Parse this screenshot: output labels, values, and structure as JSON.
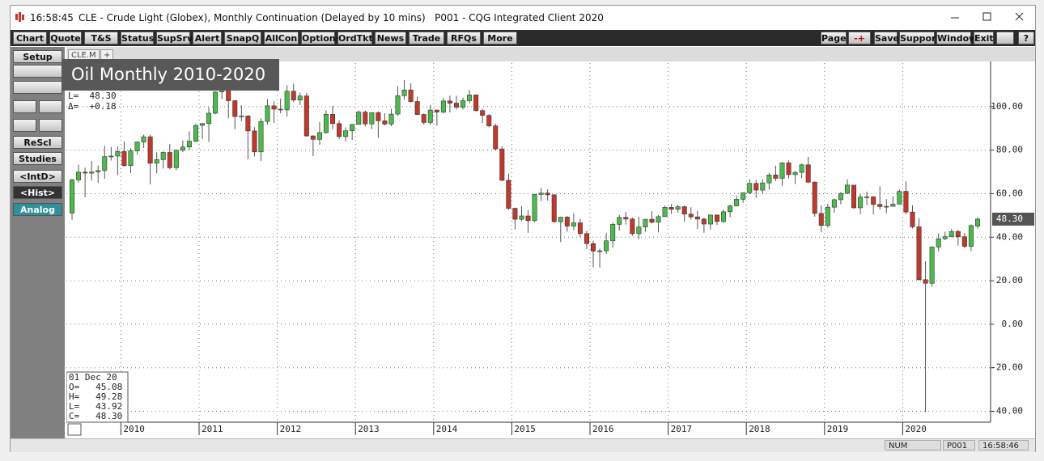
{
  "window": {
    "time": "16:58:45",
    "title": "CLE - Crude Light (Globex), Monthly Continuation (Delayed by 10 mins)   P001 - CQG Integrated Client 2020"
  },
  "toolbar": {
    "left": [
      "Chart",
      "Quote",
      "T&S",
      "Status",
      "SupSrv",
      "Alert",
      "SnapQ",
      "AllCon",
      "Options",
      "OrdTkt",
      "News",
      "Trade",
      "RFQs",
      "More"
    ],
    "right": [
      "Page",
      "-+",
      "Save",
      "Support",
      "Window",
      "Exit",
      "?"
    ]
  },
  "sidebar": [
    "Setup",
    "ReScl",
    "Studies",
    "<IntD>",
    "<Hist>",
    "Analog"
  ],
  "tabs": [
    "CLE.M",
    "+"
  ],
  "overlay_title": "Oil Monthly 2010-2020",
  "quote_header": [
    "L=  48.30",
    "Δ=  +0.18"
  ],
  "info_box": [
    "01 Dec 20",
    "O=   45.08",
    "H=   49.28",
    "L=   43.92",
    "C=   48.30"
  ],
  "status": [
    "NUM",
    "P001",
    "16:58:46"
  ],
  "chart_data": {
    "type": "candlestick",
    "categories": [
      null,
      null,
      null,
      null,
      null,
      null,
      null,
      null,
      "2010",
      null,
      null,
      null,
      null,
      null,
      null,
      null,
      null,
      null,
      null,
      null,
      "2011",
      null,
      null,
      null,
      null,
      null,
      null,
      null,
      null,
      null,
      null,
      null,
      "2012",
      null,
      null,
      null,
      null,
      null,
      null,
      null,
      null,
      null,
      null,
      null,
      "2013",
      null,
      null,
      null,
      null,
      null,
      null,
      null,
      null,
      null,
      null,
      null,
      "2014",
      null,
      null,
      null,
      null,
      null,
      null,
      null,
      null,
      null,
      null,
      null,
      "2015",
      null,
      null,
      null,
      null,
      null,
      null,
      null,
      null,
      null,
      null,
      null,
      "2016",
      null,
      null,
      null,
      null,
      null,
      null,
      null,
      null,
      null,
      null,
      null,
      "2017",
      null,
      null,
      null,
      null,
      null,
      null,
      null,
      null,
      null,
      null,
      null,
      "2018",
      null,
      null,
      null,
      null,
      null,
      null,
      null,
      null,
      null,
      null,
      null,
      "2019",
      null,
      null,
      null,
      null,
      null,
      null,
      null,
      null,
      null,
      null,
      null,
      "2020",
      null,
      null,
      null,
      null,
      null,
      null,
      null,
      null,
      null,
      null,
      null
    ],
    "open": [
      51.12,
      66.31,
      69.89,
      69.45,
      69.96,
      70.61,
      77.0,
      77.28,
      79.36,
      72.89,
      79.66,
      83.76,
      86.15,
      73.97,
      75.63,
      78.95,
      71.92,
      79.97,
      81.43,
      84.11,
      91.38,
      92.19,
      96.97,
      106.72,
      113.93,
      102.7,
      95.42,
      95.7,
      88.81,
      79.2,
      93.19,
      100.36,
      98.83,
      98.48,
      107.07,
      103.02,
      104.87,
      86.53,
      84.96,
      88.06,
      96.47,
      92.19,
      86.24,
      88.91,
      91.82,
      97.49,
      92.05,
      97.23,
      93.46,
      91.97,
      96.56,
      105.03,
      107.65,
      102.33,
      96.38,
      92.72,
      98.42,
      97.49,
      102.59,
      101.58,
      99.74,
      102.71,
      105.37,
      98.17,
      95.96,
      91.16,
      80.54,
      66.15,
      53.27,
      48.24,
      49.76,
      47.6,
      59.63,
      60.3,
      59.47,
      47.12,
      49.2,
      45.09,
      46.59,
      41.65,
      37.04,
      33.62,
      33.75,
      38.34,
      45.92,
      49.1,
      48.33,
      41.6,
      44.7,
      48.24,
      46.86,
      49.44,
      53.72,
      52.81,
      54.01,
      50.6,
      49.33,
      48.32,
      46.04,
      50.17,
      47.23,
      51.67,
      54.38,
      57.4,
      60.42,
      64.73,
      61.64,
      64.94,
      68.57,
      67.04,
      74.15,
      68.76,
      69.8,
      73.25,
      65.31,
      50.93,
      45.41,
      53.79,
      57.22,
      60.14,
      63.91,
      53.5,
      58.47,
      58.58,
      55.1,
      54.07,
      54.18,
      55.17,
      61.06,
      51.56,
      44.76,
      20.48,
      18.84,
      35.49,
      39.27,
      40.27,
      42.61,
      40.22,
      35.79,
      45.08
    ],
    "high": [
      66.82,
      73.38,
      71.91,
      75.0,
      72.94,
      82.0,
      81.48,
      81.64,
      83.95,
      80.87,
      83.85,
      87.09,
      87.15,
      79.04,
      79.4,
      82.84,
      80.25,
      84.43,
      88.63,
      92.06,
      92.58,
      99.72,
      107.0,
      114.17,
      114.83,
      102.95,
      100.62,
      95.97,
      90.52,
      94.65,
      103.37,
      102.44,
      103.74,
      109.77,
      110.55,
      106.43,
      106.28,
      86.82,
      92.94,
      98.29,
      100.42,
      93.65,
      90.49,
      91.97,
      98.24,
      98.24,
      97.35,
      97.8,
      97.0,
      99.04,
      109.32,
      112.24,
      110.74,
      104.56,
      96.8,
      100.75,
      98.48,
      103.95,
      104.99,
      104.99,
      104.19,
      107.68,
      105.43,
      98.97,
      96.5,
      92.2,
      81.69,
      69.19,
      53.55,
      54.24,
      52.48,
      59.9,
      62.58,
      61.95,
      59.69,
      49.32,
      49.73,
      50.92,
      48.36,
      42.95,
      38.39,
      34.69,
      41.9,
      46.78,
      50.21,
      51.67,
      49.01,
      49.36,
      48.3,
      51.93,
      50.16,
      54.51,
      55.24,
      54.94,
      54.57,
      53.76,
      52.0,
      49.0,
      50.43,
      50.22,
      52.86,
      54.85,
      59.05,
      60.51,
      66.66,
      66.3,
      66.55,
      69.56,
      72.9,
      74.46,
      75.27,
      70.41,
      73.8,
      76.9,
      65.57,
      54.55,
      55.37,
      57.81,
      60.73,
      66.6,
      63.94,
      59.9,
      60.94,
      58.76,
      63.38,
      57.47,
      58.74,
      61.88,
      65.65,
      54.67,
      48.66,
      28.95,
      35.75,
      41.63,
      42.52,
      43.78,
      43.43,
      41.93,
      45.9,
      49.28
    ],
    "low": [
      48.03,
      65.0,
      58.32,
      66.05,
      65.05,
      66.83,
      75.21,
      68.59,
      72.43,
      69.5,
      78.03,
      80.95,
      64.24,
      69.37,
      71.55,
      71.22,
      70.76,
      79.06,
      80.06,
      83.7,
      85.11,
      83.85,
      96.41,
      103.37,
      94.63,
      89.61,
      93.28,
      75.71,
      77.11,
      74.95,
      91.76,
      92.52,
      97.02,
      95.44,
      102.09,
      100.68,
      86.22,
      77.28,
      82.48,
      87.61,
      89.72,
      85.06,
      84.05,
      84.69,
      91.67,
      90.91,
      89.68,
      85.61,
      91.32,
      91.07,
      95.8,
      103.16,
      101.92,
      95.96,
      91.77,
      91.77,
      91.24,
      96.85,
      97.37,
      98.65,
      98.67,
      101.56,
      97.63,
      92.5,
      90.43,
      79.78,
      65.69,
      52.44,
      43.58,
      47.36,
      42.03,
      47.0,
      56.51,
      56.77,
      46.68,
      37.75,
      42.58,
      43.22,
      39.93,
      34.53,
      26.19,
      26.05,
      32.37,
      35.24,
      43.03,
      45.83,
      40.57,
      39.19,
      42.52,
      46.34,
      42.2,
      49.4,
      50.71,
      51.22,
      47.09,
      48.18,
      43.76,
      42.05,
      43.57,
      45.58,
      46.47,
      49.1,
      54.2,
      55.82,
      59.78,
      58.07,
      59.95,
      61.84,
      65.8,
      63.59,
      67.03,
      64.43,
      67.11,
      64.86,
      49.41,
      42.36,
      44.35,
      51.23,
      55.07,
      59.86,
      53.05,
      50.6,
      54.72,
      50.52,
      52.78,
      50.99,
      54.01,
      55.07,
      50.58,
      44.0,
      20.06,
      -40.32,
      17.27,
      33.6,
      38.72,
      39.96,
      36.13,
      34.92,
      33.64,
      43.92
    ],
    "close": [
      66.31,
      69.89,
      69.45,
      69.96,
      70.61,
      77.0,
      77.28,
      79.36,
      72.89,
      79.66,
      83.76,
      86.15,
      73.97,
      75.63,
      78.95,
      71.92,
      79.97,
      81.43,
      84.11,
      91.38,
      92.19,
      96.97,
      106.72,
      113.93,
      102.7,
      95.42,
      95.7,
      88.81,
      79.2,
      93.19,
      100.36,
      98.83,
      98.48,
      107.07,
      103.02,
      104.87,
      86.53,
      84.96,
      88.06,
      96.47,
      92.19,
      86.24,
      88.91,
      91.82,
      97.49,
      92.05,
      97.23,
      93.46,
      91.97,
      96.56,
      105.03,
      107.65,
      102.33,
      96.38,
      92.72,
      98.42,
      97.49,
      102.59,
      101.58,
      99.74,
      102.71,
      105.37,
      98.17,
      95.96,
      91.16,
      80.54,
      66.15,
      53.27,
      48.24,
      49.76,
      47.6,
      59.63,
      60.3,
      59.47,
      47.12,
      49.2,
      45.09,
      46.59,
      41.65,
      37.04,
      33.62,
      33.75,
      38.34,
      45.92,
      49.1,
      48.33,
      41.6,
      44.7,
      48.24,
      46.86,
      49.44,
      53.72,
      52.81,
      54.01,
      50.6,
      49.33,
      48.32,
      46.04,
      50.17,
      47.23,
      51.67,
      54.38,
      57.4,
      60.42,
      64.73,
      61.64,
      64.94,
      68.57,
      67.04,
      74.15,
      68.76,
      69.8,
      73.25,
      65.31,
      50.93,
      45.41,
      53.79,
      57.22,
      60.14,
      63.91,
      53.5,
      58.47,
      58.58,
      55.1,
      54.07,
      54.18,
      55.17,
      61.06,
      51.56,
      44.76,
      20.48,
      18.84,
      35.49,
      39.27,
      40.27,
      42.61,
      40.22,
      35.79,
      45.34,
      48.3
    ],
    "up_color": "#4cbb4c",
    "down_color": "#c0392b",
    "ylim": [
      -45,
      120
    ],
    "yticks": [
      {
        "value": -40,
        "label": "-40.00"
      },
      {
        "value": -20,
        "label": "-20.00"
      },
      {
        "value": 0,
        "label": "0.00"
      },
      {
        "value": 20,
        "label": "20.00"
      },
      {
        "value": 40,
        "label": "40.00"
      },
      {
        "value": 60,
        "label": "60.00"
      },
      {
        "value": 80,
        "label": "80.00"
      },
      {
        "value": 100,
        "label": "100.00"
      }
    ],
    "grid": true,
    "last_price": {
      "value": 48.3,
      "label": "48.30"
    }
  }
}
